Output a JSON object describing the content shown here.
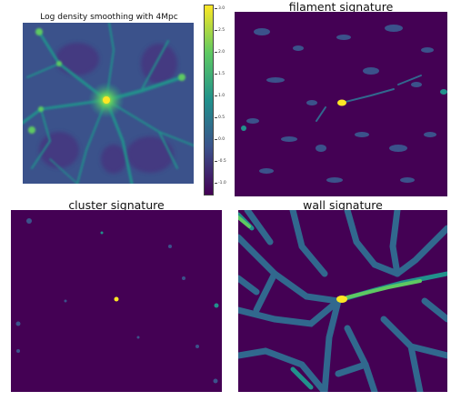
{
  "panels": {
    "density": {
      "title": "Log density smoothing with 4Mpc"
    },
    "filament": {
      "title": "filament signature"
    },
    "cluster": {
      "title": "cluster signature"
    },
    "wall": {
      "title": "wall signature"
    }
  },
  "colorbar": {
    "colormap": "viridis",
    "stops": [
      "#440154",
      "#3b528b",
      "#21918c",
      "#5ec962",
      "#fde725"
    ],
    "ticks": [
      "3.0",
      "2.5",
      "2.0",
      "1.5",
      "1.0",
      "0.5",
      "0.0",
      "-0.5",
      "-1.0"
    ]
  }
}
